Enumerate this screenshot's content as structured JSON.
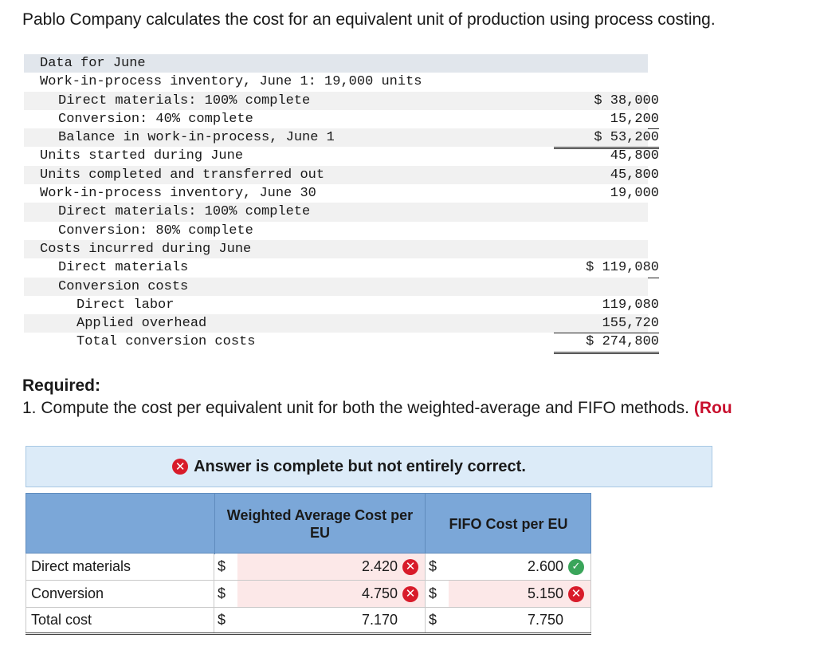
{
  "intro": "Pablo Company calculates the cost for an equivalent unit of production using process costing.",
  "data_table": {
    "rows": [
      {
        "label": "Data for June",
        "indent": 0,
        "value": "",
        "style": "header"
      },
      {
        "label": "Work-in-process inventory, June 1: 19,000 units",
        "indent": 0,
        "value": "",
        "style": ""
      },
      {
        "label": "Direct materials: 100% complete",
        "indent": 1,
        "value": "$ 38,000",
        "style": "shade"
      },
      {
        "label": "Conversion: 40% complete",
        "indent": 1,
        "value": "15,200",
        "style": "",
        "valstyle": "under"
      },
      {
        "label": "Balance in work-in-process, June 1",
        "indent": 1,
        "value": "$ 53,200",
        "style": "shade",
        "valstyle": "double"
      },
      {
        "label": "Units started during June",
        "indent": 0,
        "value": "45,800",
        "style": ""
      },
      {
        "label": "Units completed and transferred out",
        "indent": 0,
        "value": "45,800",
        "style": "shade"
      },
      {
        "label": "Work-in-process inventory, June 30",
        "indent": 0,
        "value": "19,000",
        "style": ""
      },
      {
        "label": "Direct materials: 100% complete",
        "indent": 1,
        "value": "",
        "style": "shade"
      },
      {
        "label": "Conversion: 80% complete",
        "indent": 1,
        "value": "",
        "style": ""
      },
      {
        "label": "Costs incurred during June",
        "indent": 0,
        "value": "",
        "style": "shade"
      },
      {
        "label": "Direct materials",
        "indent": 1,
        "value": "$ 119,080",
        "style": "",
        "valstyle": "under"
      },
      {
        "label": "Conversion costs",
        "indent": 1,
        "value": "",
        "style": "shade"
      },
      {
        "label": "Direct labor",
        "indent": 2,
        "value": "119,080",
        "style": ""
      },
      {
        "label": "Applied overhead",
        "indent": 2,
        "value": "155,720",
        "style": "shade",
        "valstyle": "under"
      },
      {
        "label": "Total conversion costs",
        "indent": 2,
        "value": "$ 274,800",
        "style": "",
        "valstyle": "double"
      }
    ]
  },
  "required": {
    "title": "Required:",
    "text": "1. Compute the cost per equivalent unit for both the weighted-average and FIFO methods.",
    "note": "(Rou"
  },
  "feedback": {
    "icon": "x-circle-icon",
    "text": "Answer is complete but not entirely correct."
  },
  "answer_table": {
    "headers": {
      "weighted_average": "Weighted Average Cost per EU",
      "fifo": "FIFO Cost per EU"
    },
    "rows": [
      {
        "label": "Direct materials",
        "wa_symbol": "$",
        "wa_value": "2.420",
        "wa_status": "incorrect",
        "fifo_symbol": "$",
        "fifo_value": "2.600",
        "fifo_status": "correct"
      },
      {
        "label": "Conversion",
        "wa_symbol": "$",
        "wa_value": "4.750",
        "wa_status": "incorrect",
        "fifo_symbol": "$",
        "fifo_value": "5.150",
        "fifo_status": "incorrect"
      },
      {
        "label": "Total cost",
        "wa_symbol": "$",
        "wa_value": "7.170",
        "wa_status": "none",
        "fifo_symbol": "$",
        "fifo_value": "7.750",
        "fifo_status": "none"
      }
    ]
  },
  "colors": {
    "header_blue": "#7ba7d8",
    "feedback_bg": "#dcebf8",
    "incorrect_red": "#d81b2a",
    "correct_green": "#3aa55a",
    "note_red": "#c8102e"
  }
}
